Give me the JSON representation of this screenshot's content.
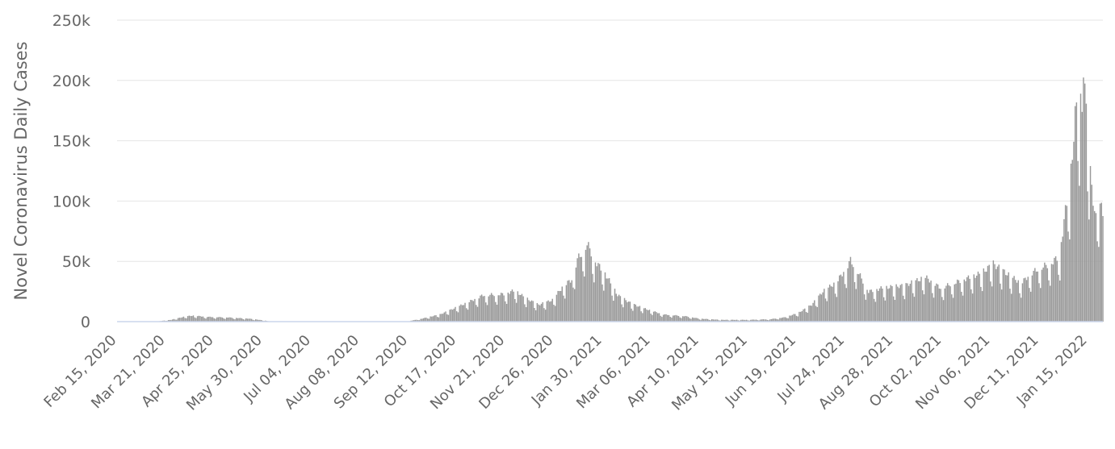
{
  "chart_data": {
    "type": "bar",
    "title": "",
    "xlabel": "",
    "ylabel": "Novel Coronavirus Daily Cases",
    "ylim": [
      0,
      250000
    ],
    "y_ticks": [
      {
        "value": 0,
        "label": "0"
      },
      {
        "value": 50000,
        "label": "50k"
      },
      {
        "value": 100000,
        "label": "100k"
      },
      {
        "value": 150000,
        "label": "150k"
      },
      {
        "value": 200000,
        "label": "200k"
      },
      {
        "value": 250000,
        "label": "250k"
      }
    ],
    "x_range": [
      "2020-02-15",
      "2022-01-26"
    ],
    "x_ticks": [
      "Feb 15, 2020",
      "Mar 21, 2020",
      "Apr 25, 2020",
      "May 30, 2020",
      "Jul 04, 2020",
      "Aug 08, 2020",
      "Sep 12, 2020",
      "Oct 17, 2020",
      "Nov 21, 2020",
      "Dec 26, 2020",
      "Jan 30, 2021",
      "Mar 06, 2021",
      "Apr 10, 2021",
      "May 15, 2021",
      "Jun 19, 2021",
      "Jul 24, 2021",
      "Aug 28, 2021",
      "Oct 02, 2021",
      "Nov 06, 2021",
      "Dec 11, 2021",
      "Jan 15, 2022"
    ],
    "grid": true,
    "legend": "none",
    "bar_color": "#999999",
    "series": [
      {
        "values_sampled_key_dates": [
          {
            "date": "2020-02-15",
            "value": 0
          },
          {
            "date": "2020-03-15",
            "value": 200
          },
          {
            "date": "2020-03-25",
            "value": 1500
          },
          {
            "date": "2020-04-05",
            "value": 4500
          },
          {
            "date": "2020-04-10",
            "value": 5000
          },
          {
            "date": "2020-04-20",
            "value": 4000
          },
          {
            "date": "2020-05-05",
            "value": 3500
          },
          {
            "date": "2020-05-20",
            "value": 2500
          },
          {
            "date": "2020-05-31",
            "value": 1000
          },
          {
            "date": "2020-06-05",
            "value": 0
          },
          {
            "date": "2020-09-10",
            "value": 0
          },
          {
            "date": "2020-09-20",
            "value": 2000
          },
          {
            "date": "2020-10-05",
            "value": 6000
          },
          {
            "date": "2020-10-15",
            "value": 11000
          },
          {
            "date": "2020-10-25",
            "value": 16000
          },
          {
            "date": "2020-11-05",
            "value": 22000
          },
          {
            "date": "2020-11-20",
            "value": 23000
          },
          {
            "date": "2020-11-28",
            "value": 26000
          },
          {
            "date": "2020-12-05",
            "value": 20000
          },
          {
            "date": "2020-12-15",
            "value": 14000
          },
          {
            "date": "2020-12-25",
            "value": 18000
          },
          {
            "date": "2021-01-02",
            "value": 30000
          },
          {
            "date": "2021-01-08",
            "value": 35000
          },
          {
            "date": "2021-01-12",
            "value": 52000
          },
          {
            "date": "2021-01-16",
            "value": 58000
          },
          {
            "date": "2021-01-19",
            "value": 65000
          },
          {
            "date": "2021-01-25",
            "value": 50000
          },
          {
            "date": "2021-02-01",
            "value": 40000
          },
          {
            "date": "2021-02-10",
            "value": 22000
          },
          {
            "date": "2021-02-20",
            "value": 15000
          },
          {
            "date": "2021-03-01",
            "value": 11000
          },
          {
            "date": "2021-03-15",
            "value": 6000
          },
          {
            "date": "2021-03-31",
            "value": 4500
          },
          {
            "date": "2021-04-10",
            "value": 2500
          },
          {
            "date": "2021-04-25",
            "value": 1500
          },
          {
            "date": "2021-05-15",
            "value": 1500
          },
          {
            "date": "2021-05-31",
            "value": 2000
          },
          {
            "date": "2021-06-10",
            "value": 3500
          },
          {
            "date": "2021-06-20",
            "value": 7000
          },
          {
            "date": "2021-06-30",
            "value": 14000
          },
          {
            "date": "2021-07-08",
            "value": 25000
          },
          {
            "date": "2021-07-18",
            "value": 33000
          },
          {
            "date": "2021-07-25",
            "value": 45000
          },
          {
            "date": "2021-07-28",
            "value": 51000
          },
          {
            "date": "2021-08-03",
            "value": 40000
          },
          {
            "date": "2021-08-10",
            "value": 25000
          },
          {
            "date": "2021-08-20",
            "value": 28000
          },
          {
            "date": "2021-09-05",
            "value": 30000
          },
          {
            "date": "2021-09-20",
            "value": 37000
          },
          {
            "date": "2021-10-01",
            "value": 28000
          },
          {
            "date": "2021-10-15",
            "value": 34000
          },
          {
            "date": "2021-10-30",
            "value": 40000
          },
          {
            "date": "2021-11-08",
            "value": 48000
          },
          {
            "date": "2021-11-20",
            "value": 38000
          },
          {
            "date": "2021-11-28",
            "value": 32000
          },
          {
            "date": "2021-12-05",
            "value": 40000
          },
          {
            "date": "2021-12-12",
            "value": 45000
          },
          {
            "date": "2021-12-19",
            "value": 48000
          },
          {
            "date": "2021-12-26",
            "value": 55000
          },
          {
            "date": "2021-12-29",
            "value": 85000
          },
          {
            "date": "2022-01-02",
            "value": 110000
          },
          {
            "date": "2022-01-06",
            "value": 170000
          },
          {
            "date": "2022-01-08",
            "value": 185000
          },
          {
            "date": "2022-01-11",
            "value": 175000
          },
          {
            "date": "2022-01-12",
            "value": 215000
          },
          {
            "date": "2022-01-15",
            "value": 150000
          },
          {
            "date": "2022-01-18",
            "value": 110000
          },
          {
            "date": "2022-01-21",
            "value": 85000
          },
          {
            "date": "2022-01-23",
            "value": 100000
          },
          {
            "date": "2022-01-26",
            "value": 90000
          }
        ]
      }
    ]
  }
}
